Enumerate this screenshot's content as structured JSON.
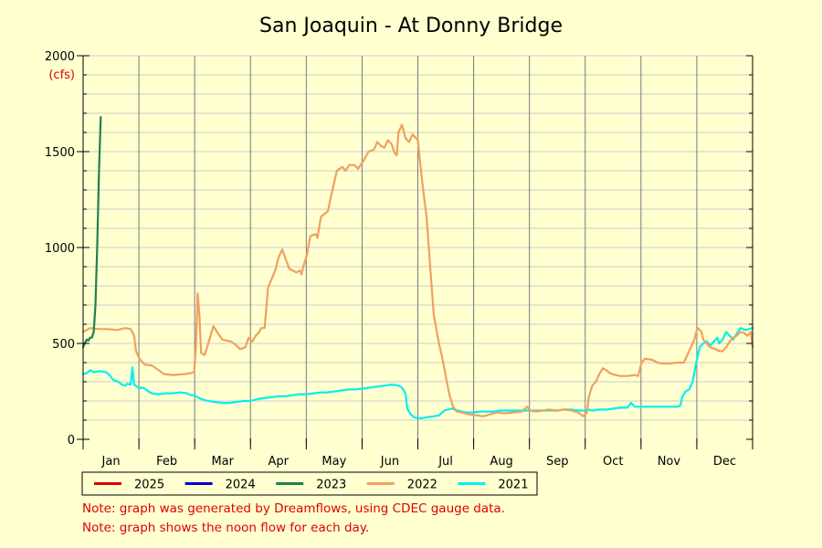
{
  "chart_data": {
    "type": "line",
    "title": "San Joaquin - At Donny Bridge",
    "ylabel": "(cfs)",
    "xlabel": "",
    "ylim": [
      0,
      2000
    ],
    "y_ticks": [
      0,
      500,
      1000,
      1500,
      2000
    ],
    "x_months": [
      "Jan",
      "Feb",
      "Mar",
      "Apr",
      "May",
      "Jun",
      "Jul",
      "Aug",
      "Sep",
      "Oct",
      "Nov",
      "Dec"
    ],
    "grid": true,
    "legend_position": "bottom",
    "x_unit": "day of year",
    "series": [
      {
        "name": "2025",
        "color": "#e00000",
        "points": []
      },
      {
        "name": "2024",
        "color": "#0000d0",
        "points": []
      },
      {
        "name": "2023",
        "color": "#208050",
        "points": [
          [
            1,
            480
          ],
          [
            2,
            500
          ],
          [
            3,
            520
          ],
          [
            4,
            515
          ],
          [
            5,
            530
          ],
          [
            6,
            530
          ],
          [
            7,
            560
          ],
          [
            8,
            700
          ],
          [
            9,
            1000
          ],
          [
            10,
            1400
          ],
          [
            11,
            1680
          ]
        ]
      },
      {
        "name": "2022",
        "color": "#f0a060",
        "points": [
          [
            1,
            560
          ],
          [
            5,
            580
          ],
          [
            10,
            575
          ],
          [
            15,
            575
          ],
          [
            20,
            570
          ],
          [
            25,
            580
          ],
          [
            28,
            575
          ],
          [
            30,
            540
          ],
          [
            31,
            460
          ],
          [
            33,
            420
          ],
          [
            36,
            390
          ],
          [
            40,
            385
          ],
          [
            44,
            360
          ],
          [
            47,
            340
          ],
          [
            52,
            335
          ],
          [
            58,
            340
          ],
          [
            62,
            345
          ],
          [
            64,
            350
          ],
          [
            65,
            480
          ],
          [
            66,
            760
          ],
          [
            67,
            650
          ],
          [
            68,
            450
          ],
          [
            70,
            440
          ],
          [
            72,
            500
          ],
          [
            74,
            560
          ],
          [
            75,
            590
          ],
          [
            77,
            560
          ],
          [
            80,
            520
          ],
          [
            85,
            510
          ],
          [
            88,
            490
          ],
          [
            90,
            470
          ],
          [
            93,
            480
          ],
          [
            95,
            530
          ],
          [
            97,
            510
          ],
          [
            99,
            540
          ],
          [
            101,
            560
          ],
          [
            102,
            580
          ],
          [
            104,
            580
          ],
          [
            106,
            790
          ],
          [
            110,
            880
          ],
          [
            112,
            950
          ],
          [
            114,
            990
          ],
          [
            116,
            940
          ],
          [
            118,
            890
          ],
          [
            120,
            880
          ],
          [
            122,
            870
          ],
          [
            124,
            880
          ],
          [
            125,
            860
          ],
          [
            126,
            900
          ],
          [
            128,
            960
          ],
          [
            130,
            1060
          ],
          [
            133,
            1070
          ],
          [
            134,
            1050
          ],
          [
            136,
            1160
          ],
          [
            140,
            1190
          ],
          [
            142,
            1280
          ],
          [
            145,
            1400
          ],
          [
            148,
            1420
          ],
          [
            150,
            1400
          ],
          [
            152,
            1430
          ],
          [
            155,
            1430
          ],
          [
            157,
            1410
          ],
          [
            160,
            1450
          ],
          [
            163,
            1500
          ],
          [
            166,
            1510
          ],
          [
            168,
            1550
          ],
          [
            170,
            1530
          ],
          [
            172,
            1520
          ],
          [
            174,
            1560
          ],
          [
            176,
            1540
          ],
          [
            178,
            1490
          ],
          [
            179,
            1480
          ],
          [
            180,
            1600
          ],
          [
            182,
            1640
          ],
          [
            184,
            1570
          ],
          [
            186,
            1550
          ],
          [
            188,
            1590
          ],
          [
            191,
            1560
          ],
          [
            192,
            1470
          ],
          [
            194,
            1300
          ],
          [
            196,
            1160
          ],
          [
            198,
            900
          ],
          [
            200,
            650
          ],
          [
            203,
            500
          ],
          [
            205,
            420
          ],
          [
            207,
            320
          ],
          [
            209,
            230
          ],
          [
            211,
            170
          ],
          [
            213,
            145
          ],
          [
            216,
            140
          ],
          [
            220,
            130
          ],
          [
            225,
            125
          ],
          [
            228,
            120
          ],
          [
            232,
            130
          ],
          [
            236,
            140
          ],
          [
            240,
            135
          ],
          [
            245,
            140
          ],
          [
            250,
            145
          ],
          [
            253,
            170
          ],
          [
            255,
            150
          ],
          [
            258,
            145
          ],
          [
            262,
            150
          ],
          [
            265,
            155
          ],
          [
            270,
            150
          ],
          [
            274,
            155
          ],
          [
            278,
            150
          ],
          [
            282,
            140
          ],
          [
            285,
            120
          ],
          [
            287,
            140
          ],
          [
            288,
            220
          ],
          [
            290,
            280
          ],
          [
            292,
            300
          ],
          [
            294,
            340
          ],
          [
            296,
            370
          ],
          [
            298,
            360
          ],
          [
            300,
            345
          ],
          [
            303,
            335
          ],
          [
            306,
            330
          ],
          [
            310,
            330
          ],
          [
            314,
            335
          ],
          [
            316,
            330
          ],
          [
            318,
            400
          ],
          [
            320,
            420
          ],
          [
            324,
            415
          ],
          [
            327,
            400
          ],
          [
            330,
            395
          ],
          [
            334,
            395
          ],
          [
            338,
            400
          ],
          [
            342,
            400
          ],
          [
            344,
            440
          ],
          [
            346,
            480
          ],
          [
            348,
            520
          ],
          [
            349,
            560
          ],
          [
            350,
            580
          ],
          [
            352,
            560
          ],
          [
            353,
            520
          ],
          [
            355,
            500
          ],
          [
            357,
            480
          ],
          [
            360,
            470
          ],
          [
            362,
            460
          ],
          [
            364,
            460
          ],
          [
            366,
            480
          ],
          [
            368,
            510
          ],
          [
            370,
            530
          ],
          [
            372,
            540
          ],
          [
            374,
            560
          ],
          [
            376,
            555
          ],
          [
            378,
            540
          ],
          [
            380,
            560
          ],
          [
            381,
            480
          ]
        ]
      },
      {
        "name": "2021",
        "color": "#00f0f0",
        "points": [
          [
            1,
            340
          ],
          [
            3,
            345
          ],
          [
            5,
            360
          ],
          [
            7,
            350
          ],
          [
            10,
            355
          ],
          [
            14,
            350
          ],
          [
            16,
            335
          ],
          [
            18,
            310
          ],
          [
            21,
            300
          ],
          [
            23,
            285
          ],
          [
            25,
            280
          ],
          [
            26,
            290
          ],
          [
            28,
            285
          ],
          [
            29,
            375
          ],
          [
            30,
            285
          ],
          [
            33,
            265
          ],
          [
            34,
            270
          ],
          [
            36,
            265
          ],
          [
            38,
            250
          ],
          [
            40,
            240
          ],
          [
            44,
            235
          ],
          [
            48,
            240
          ],
          [
            52,
            240
          ],
          [
            56,
            245
          ],
          [
            60,
            240
          ],
          [
            62,
            230
          ],
          [
            64,
            230
          ],
          [
            66,
            220
          ],
          [
            68,
            210
          ],
          [
            72,
            200
          ],
          [
            76,
            195
          ],
          [
            80,
            190
          ],
          [
            84,
            190
          ],
          [
            88,
            195
          ],
          [
            92,
            200
          ],
          [
            96,
            200
          ],
          [
            100,
            210
          ],
          [
            104,
            215
          ],
          [
            108,
            220
          ],
          [
            112,
            225
          ],
          [
            116,
            225
          ],
          [
            120,
            230
          ],
          [
            124,
            235
          ],
          [
            128,
            235
          ],
          [
            132,
            240
          ],
          [
            136,
            245
          ],
          [
            140,
            245
          ],
          [
            144,
            250
          ],
          [
            148,
            255
          ],
          [
            152,
            260
          ],
          [
            156,
            260
          ],
          [
            160,
            265
          ],
          [
            164,
            270
          ],
          [
            168,
            275
          ],
          [
            172,
            280
          ],
          [
            176,
            285
          ],
          [
            180,
            280
          ],
          [
            182,
            270
          ],
          [
            184,
            240
          ],
          [
            185,
            160
          ],
          [
            187,
            130
          ],
          [
            189,
            115
          ],
          [
            191,
            110
          ],
          [
            193,
            110
          ],
          [
            196,
            115
          ],
          [
            200,
            120
          ],
          [
            203,
            125
          ],
          [
            206,
            150
          ],
          [
            208,
            155
          ],
          [
            210,
            160
          ],
          [
            212,
            155
          ],
          [
            214,
            150
          ],
          [
            216,
            145
          ],
          [
            218,
            140
          ],
          [
            222,
            140
          ],
          [
            226,
            145
          ],
          [
            230,
            145
          ],
          [
            234,
            145
          ],
          [
            238,
            150
          ],
          [
            242,
            150
          ],
          [
            246,
            150
          ],
          [
            250,
            150
          ],
          [
            254,
            150
          ],
          [
            258,
            150
          ],
          [
            262,
            150
          ],
          [
            266,
            150
          ],
          [
            270,
            150
          ],
          [
            274,
            155
          ],
          [
            278,
            155
          ],
          [
            282,
            150
          ],
          [
            286,
            150
          ],
          [
            288,
            155
          ],
          [
            290,
            150
          ],
          [
            294,
            155
          ],
          [
            298,
            155
          ],
          [
            302,
            160
          ],
          [
            306,
            165
          ],
          [
            310,
            165
          ],
          [
            312,
            190
          ],
          [
            314,
            170
          ],
          [
            318,
            170
          ],
          [
            322,
            170
          ],
          [
            326,
            170
          ],
          [
            330,
            170
          ],
          [
            334,
            170
          ],
          [
            338,
            170
          ],
          [
            340,
            175
          ],
          [
            341,
            220
          ],
          [
            343,
            250
          ],
          [
            345,
            260
          ],
          [
            347,
            300
          ],
          [
            349,
            400
          ],
          [
            351,
            480
          ],
          [
            353,
            500
          ],
          [
            355,
            510
          ],
          [
            357,
            490
          ],
          [
            359,
            510
          ],
          [
            361,
            530
          ],
          [
            362,
            500
          ],
          [
            364,
            520
          ],
          [
            366,
            560
          ],
          [
            368,
            540
          ],
          [
            370,
            520
          ],
          [
            372,
            550
          ],
          [
            374,
            580
          ],
          [
            377,
            570
          ],
          [
            379,
            575
          ],
          [
            381,
            580
          ]
        ]
      }
    ]
  },
  "notes": [
    "Note: graph was generated by Dreamflows, using CDEC gauge data.",
    "Note: graph shows the noon flow for each day."
  ]
}
